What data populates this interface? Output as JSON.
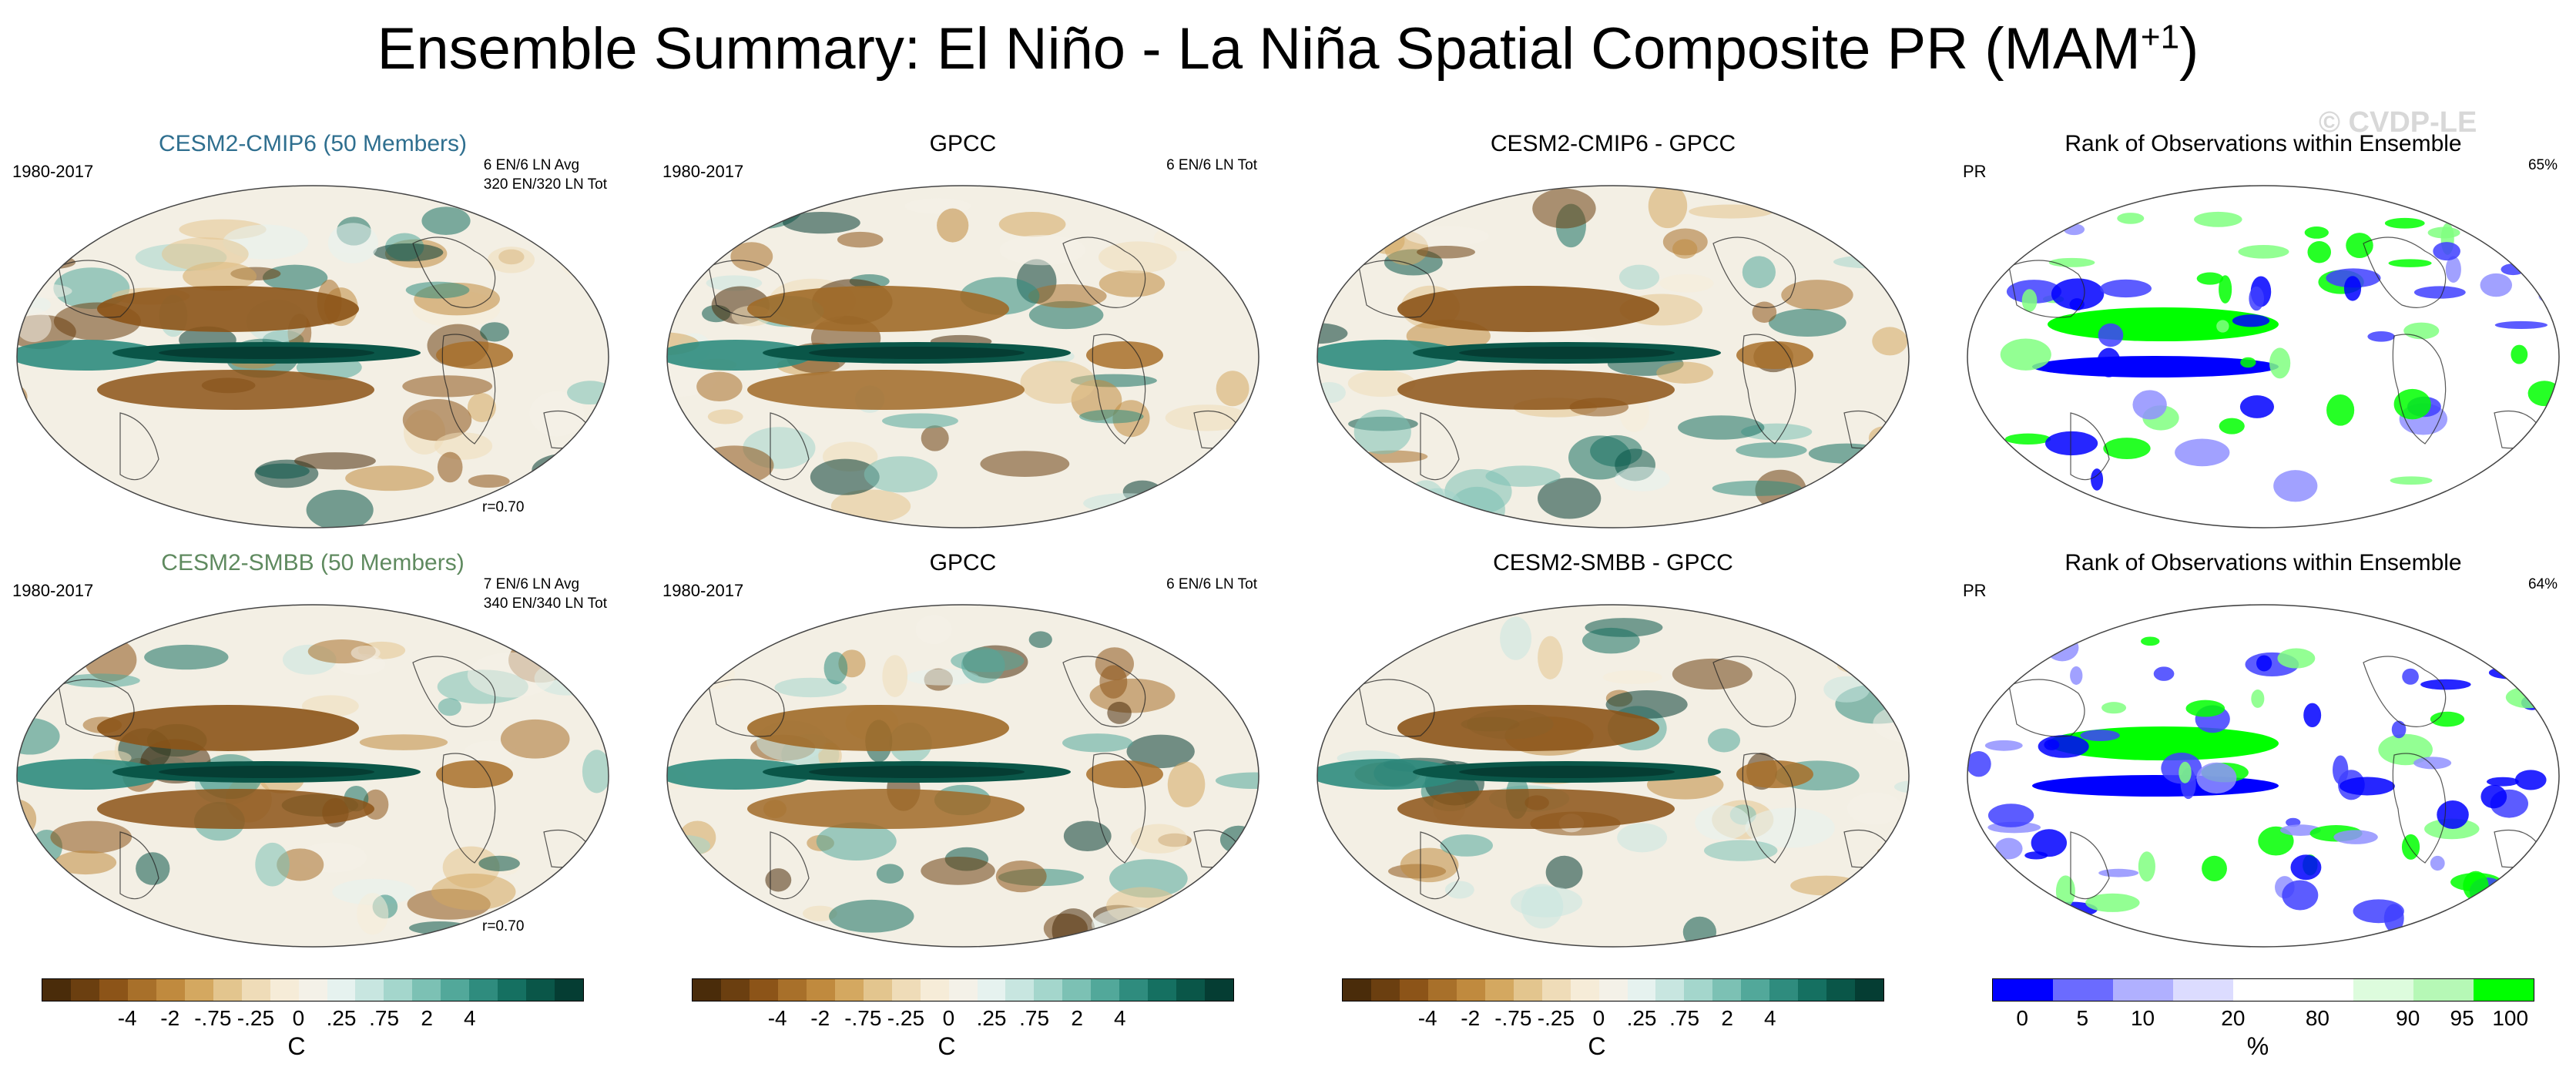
{
  "title": {
    "main": "Ensemble Summary: El Niño - La Niña Spatial Composite PR (MAM",
    "sup": "+1",
    "close": ")"
  },
  "watermark": "© CVDP-LE",
  "panels": [
    {
      "id": "p1",
      "title": "CESM2-CMIP6 (50 Members)",
      "title_color": "#2f6f8f",
      "years": "1980-2017",
      "info1": "6 EN/6 LN Avg",
      "info2": "320 EN/320 LN Tot",
      "corr": "r=0.70",
      "kind": "model"
    },
    {
      "id": "p2",
      "title": "GPCC",
      "title_color": "#000000",
      "years": "1980-2017",
      "info1": "6 EN/6 LN Tot",
      "info2": "",
      "corr": "",
      "kind": "obs"
    },
    {
      "id": "p3",
      "title": "CESM2-CMIP6 - GPCC",
      "title_color": "#000000",
      "years": "",
      "info1": "",
      "info2": "",
      "corr": "",
      "kind": "diff"
    },
    {
      "id": "p4",
      "title": "Rank of Observations within Ensemble",
      "title_color": "#000000",
      "years": "PR",
      "info1": "65%",
      "info2": "",
      "corr": "",
      "kind": "rank"
    },
    {
      "id": "p5",
      "title": "CESM2-SMBB (50 Members)",
      "title_color": "#5f8a5f",
      "years": "1980-2017",
      "info1": "7 EN/6 LN Avg",
      "info2": "340 EN/340 LN Tot",
      "corr": "r=0.70",
      "kind": "model"
    },
    {
      "id": "p6",
      "title": "GPCC",
      "title_color": "#000000",
      "years": "1980-2017",
      "info1": "6 EN/6 LN Tot",
      "info2": "",
      "corr": "",
      "kind": "obs"
    },
    {
      "id": "p7",
      "title": "CESM2-SMBB - GPCC",
      "title_color": "#000000",
      "years": "",
      "info1": "",
      "info2": "",
      "corr": "",
      "kind": "diff"
    },
    {
      "id": "p8",
      "title": "Rank of Observations within Ensemble",
      "title_color": "#000000",
      "years": "PR",
      "info1": "64%",
      "info2": "",
      "corr": "",
      "kind": "rank"
    }
  ],
  "colorbars": {
    "diverging": {
      "colors": [
        "#4a2c0a",
        "#6b3f10",
        "#8c5418",
        "#a8702a",
        "#c08a3e",
        "#d4a860",
        "#e3c58e",
        "#efdcb8",
        "#f6ecd8",
        "#f4f1e8",
        "#e6f2ef",
        "#c8e6e0",
        "#a4d6cc",
        "#7cc1b4",
        "#52a89a",
        "#2f8c7e",
        "#157061",
        "#0a5648",
        "#053d33"
      ],
      "ticks": [
        "-4",
        "-2",
        "-.75",
        "-.25",
        "0",
        ".25",
        ".75",
        "2",
        "4"
      ],
      "unit": "C"
    },
    "rank": {
      "colors": [
        "#0000ff",
        "#6b6bff",
        "#b0b0ff",
        "#dcdcff",
        "#ffffff",
        "#ffffff",
        "#ddfcdd",
        "#b6f8b6",
        "#00ff00"
      ],
      "ticks": [
        "0",
        "5",
        "10",
        "20",
        "80",
        "90",
        "95",
        "100"
      ],
      "unit": "%"
    }
  },
  "chart_data": [
    {
      "type": "heatmap",
      "title": "CESM2-CMIP6 (50 Members)",
      "period": "1980-2017",
      "note": "6 EN/6 LN Avg, 320 EN/320 LN Tot",
      "pattern_correlation": 0.7,
      "colorbar_ticks": [
        -4,
        -2,
        -0.75,
        -0.25,
        0,
        0.25,
        0.75,
        2,
        4
      ],
      "unit": "C"
    },
    {
      "type": "heatmap",
      "title": "GPCC",
      "period": "1980-2017",
      "note": "6 EN/6 LN Tot",
      "colorbar_ticks": [
        -4,
        -2,
        -0.75,
        -0.25,
        0,
        0.25,
        0.75,
        2,
        4
      ],
      "unit": "C"
    },
    {
      "type": "heatmap",
      "title": "CESM2-CMIP6 - GPCC",
      "colorbar_ticks": [
        -4,
        -2,
        -0.75,
        -0.25,
        0,
        0.25,
        0.75,
        2,
        4
      ],
      "unit": "C"
    },
    {
      "type": "heatmap",
      "title": "Rank of Observations within Ensemble",
      "variable": "PR",
      "percent": 65,
      "colorbar_ticks": [
        0,
        5,
        10,
        20,
        80,
        90,
        95,
        100
      ],
      "unit": "%"
    },
    {
      "type": "heatmap",
      "title": "CESM2-SMBB (50 Members)",
      "period": "1980-2017",
      "note": "7 EN/6 LN Avg, 340 EN/340 LN Tot",
      "pattern_correlation": 0.7,
      "colorbar_ticks": [
        -4,
        -2,
        -0.75,
        -0.25,
        0,
        0.25,
        0.75,
        2,
        4
      ],
      "unit": "C"
    },
    {
      "type": "heatmap",
      "title": "GPCC",
      "period": "1980-2017",
      "note": "6 EN/6 LN Tot",
      "colorbar_ticks": [
        -4,
        -2,
        -0.75,
        -0.25,
        0,
        0.25,
        0.75,
        2,
        4
      ],
      "unit": "C"
    },
    {
      "type": "heatmap",
      "title": "CESM2-SMBB - GPCC",
      "colorbar_ticks": [
        -4,
        -2,
        -0.75,
        -0.25,
        0,
        0.25,
        0.75,
        2,
        4
      ],
      "unit": "C"
    },
    {
      "type": "heatmap",
      "title": "Rank of Observations within Ensemble",
      "variable": "PR",
      "percent": 64,
      "colorbar_ticks": [
        0,
        5,
        10,
        20,
        80,
        90,
        95,
        100
      ],
      "unit": "%"
    }
  ]
}
